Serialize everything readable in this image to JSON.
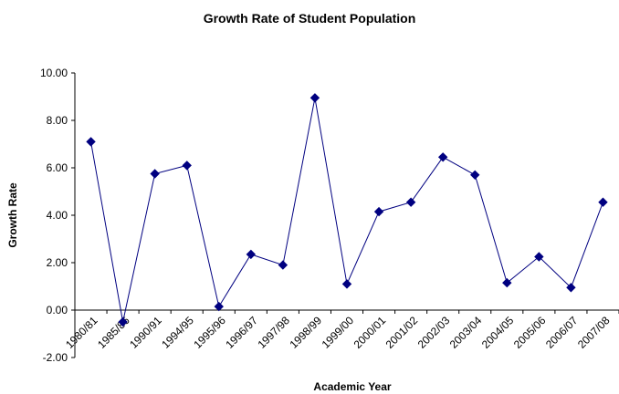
{
  "chart_data": {
    "type": "line",
    "title": "Growth Rate of Student Population",
    "xlabel": "Academic Year",
    "ylabel": "Growth Rate",
    "categories": [
      "1980/81",
      "1985/86",
      "1990/91",
      "1994/95",
      "1995/96",
      "1996/97",
      "1997/98",
      "1998/99",
      "1999/00",
      "2000/01",
      "2001/02",
      "2002/03",
      "2003/04",
      "2004/05",
      "2005/06",
      "2006/07",
      "2007/08"
    ],
    "series": [
      {
        "values": [
          7.1,
          -0.5,
          5.75,
          6.1,
          0.15,
          2.35,
          1.9,
          8.95,
          1.1,
          4.15,
          4.55,
          6.45,
          5.7,
          1.15,
          2.25,
          0.95,
          4.55
        ],
        "color": "#000080"
      }
    ],
    "ylim": [
      -2,
      10
    ],
    "yticks": [
      "-2.00",
      "0.00",
      "2.00",
      "4.00",
      "6.00",
      "8.00",
      "10.00"
    ],
    "grid": false,
    "legend": "none"
  }
}
